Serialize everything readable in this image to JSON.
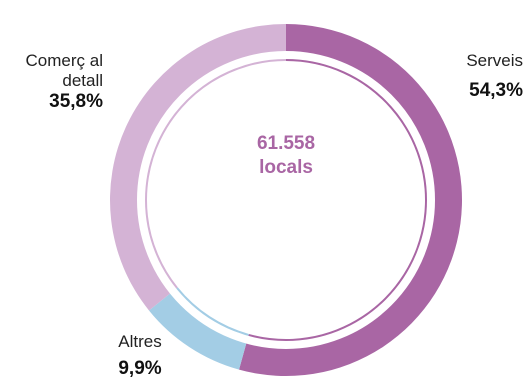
{
  "chart_data": {
    "type": "pie",
    "center": {
      "value": "61.558",
      "unit": "locals",
      "color": "#A966A4"
    },
    "slices": [
      {
        "label_lines": [
          "Serveis"
        ],
        "value": 54.3,
        "value_label": "54,3%",
        "color": "#A966A4"
      },
      {
        "label_lines": [
          "Altres"
        ],
        "value": 9.9,
        "value_label": "9,9%",
        "color": "#A3CDE5"
      },
      {
        "label_lines": [
          "Comerç al",
          "detall"
        ],
        "value": 35.8,
        "value_label": "35,8%",
        "color": "#D4B3D5"
      }
    ]
  }
}
